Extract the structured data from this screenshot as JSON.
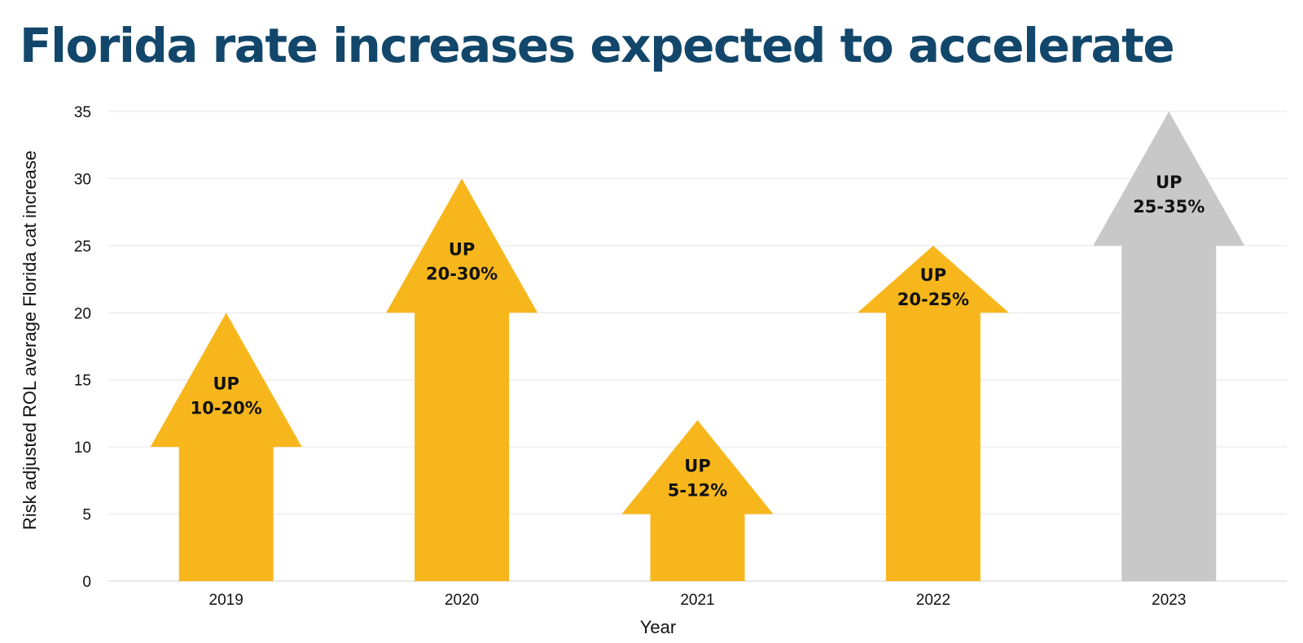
{
  "chart_data": {
    "type": "bar",
    "title": "Florida rate increases expected to accelerate",
    "xlabel": "Year",
    "ylabel": "Risk adjusted ROL average Florida cat increase",
    "ylim": [
      0,
      35
    ],
    "yticks": [
      0,
      5,
      10,
      15,
      20,
      25,
      30,
      35
    ],
    "grid": true,
    "categories": [
      "2019",
      "2020",
      "2021",
      "2022",
      "2023"
    ],
    "ranges": [
      [
        10,
        20
      ],
      [
        20,
        30
      ],
      [
        5,
        12
      ],
      [
        20,
        25
      ],
      [
        25,
        35
      ]
    ],
    "labels": [
      [
        "UP",
        "10-20%"
      ],
      [
        "UP",
        "20-30%"
      ],
      [
        "UP",
        "5-12%"
      ],
      [
        "UP",
        "20-25%"
      ],
      [
        "UP",
        "25-35%"
      ]
    ],
    "colors": [
      "#f7b71c",
      "#f7b71c",
      "#f7b71c",
      "#f7b71c",
      "#c8c8c8"
    ]
  }
}
